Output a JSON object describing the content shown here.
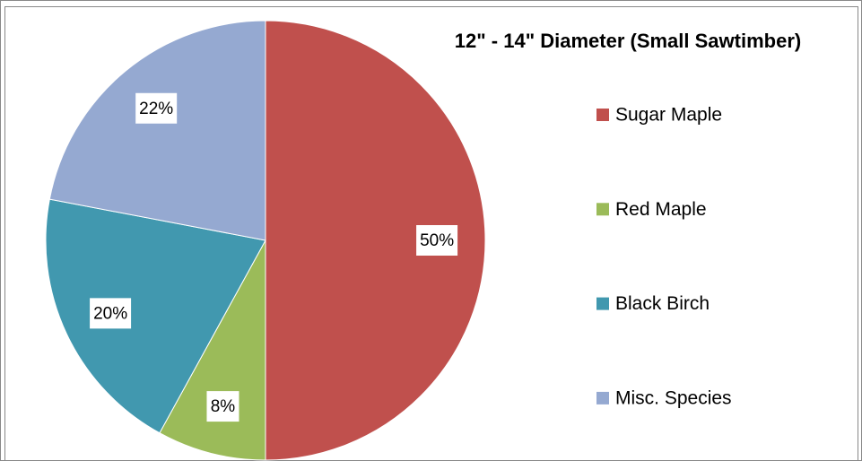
{
  "chart_data": {
    "type": "pie",
    "title": "12\" - 14\" Diameter (Small Sawtimber)",
    "categories": [
      "Sugar Maple",
      "Red Maple",
      "Black Birch",
      "Misc. Species"
    ],
    "values": [
      50,
      8,
      20,
      22
    ],
    "value_labels": [
      "50%",
      "8%",
      "20%",
      "22%"
    ],
    "colors": [
      "#c0504d",
      "#9bbb59",
      "#4198af",
      "#95a9d1"
    ],
    "legend": "right"
  }
}
